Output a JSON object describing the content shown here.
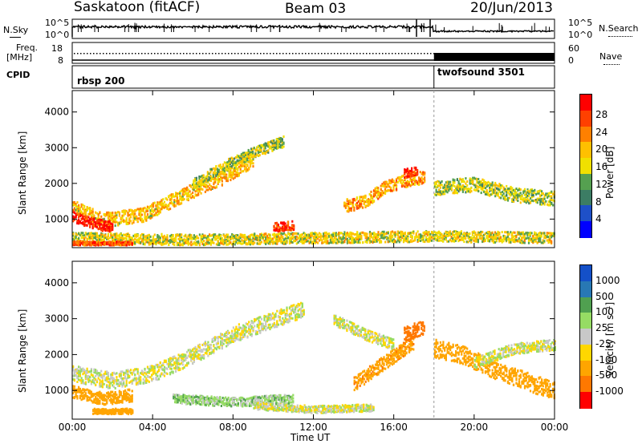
{
  "header": {
    "station": "Saskatoon (fitACF)",
    "beam": "Beam 03",
    "date": "20/Jun/2013"
  },
  "top_strip": {
    "nsky_label": "N.Sky",
    "nsearch_label": "N.Search",
    "freq_label_line1": "Freq.",
    "freq_label_line2": "[MHz]",
    "nave_label": "Nave",
    "cpid_label": "CPID",
    "left_ticks": [
      "10^5",
      "10^0"
    ],
    "right_ticks": [
      "10^5",
      "10^0"
    ],
    "freq_ticks": [
      "18",
      "8"
    ],
    "nave_ticks": [
      "60",
      "0"
    ],
    "cpid_segments": [
      {
        "label": "rbsp 200",
        "start_hour": 0,
        "end_hour": 18
      },
      {
        "label": "twofsound 3501",
        "start_hour": 18,
        "end_hour": 24
      }
    ]
  },
  "colors": {
    "power_scale": [
      "#0000ff",
      "#1e50c8",
      "#3c7d64",
      "#55a050",
      "#f0e000",
      "#ffc000",
      "#ff8000",
      "#ff4000",
      "#ff0000"
    ],
    "velocity_scale": [
      "#1450c8",
      "#2878b4",
      "#50a050",
      "#96dc64",
      "#c8c8c8",
      "#ffd700",
      "#ffa500",
      "#ff7800",
      "#ff0000"
    ]
  },
  "chart_data": [
    {
      "type": "heatmap",
      "name": "power-panel",
      "ylabel": "Slant Range [km]",
      "xlabel": "",
      "x_range_hours": [
        0,
        24
      ],
      "ylim": [
        200,
        4600
      ],
      "yticks": [
        1000,
        2000,
        3000,
        4000
      ],
      "xticks": [
        "00:00",
        "04:00",
        "08:00",
        "12:00",
        "16:00",
        "20:00",
        "00:00"
      ],
      "colorbar": {
        "label": "Power [dB]",
        "ticks": [
          "4",
          "8",
          "12",
          "16",
          "20",
          "24",
          "28"
        ],
        "range": [
          0,
          30
        ]
      },
      "bands": [
        {
          "x": [
            0,
            1.5,
            3.5,
            5.5,
            7.5,
            9.0
          ],
          "y": [
            1350,
            1000,
            1150,
            1700,
            2200,
            2700
          ],
          "width": 400,
          "value": 18
        },
        {
          "x": [
            0,
            1.0,
            2.0
          ],
          "y": [
            1100,
            900,
            800
          ],
          "width": 300,
          "value": 28
        },
        {
          "x": [
            6.0,
            7.5,
            9.0,
            10.5
          ],
          "y": [
            2000,
            2500,
            2900,
            3200
          ],
          "width": 300,
          "value": 14
        },
        {
          "x": [
            13.5,
            14.5,
            15.5,
            16.5,
            17.5
          ],
          "y": [
            1400,
            1500,
            1900,
            2100,
            2200
          ],
          "width": 350,
          "value": 20
        },
        {
          "x": [
            16.5,
            17.2
          ],
          "y": [
            2300,
            2400
          ],
          "width": 250,
          "value": 26
        },
        {
          "x": [
            18.0,
            20.0,
            22.0,
            24.0
          ],
          "y": [
            1900,
            2000,
            1700,
            1600
          ],
          "width": 400,
          "value": 14
        },
        {
          "x": [
            0,
            6,
            12,
            18,
            24
          ],
          "y": [
            500,
            450,
            500,
            550,
            500
          ],
          "width": 300,
          "value": 16
        },
        {
          "x": [
            10.0,
            11.0
          ],
          "y": [
            800,
            850
          ],
          "width": 250,
          "value": 26
        },
        {
          "x": [
            0,
            3.0
          ],
          "y": [
            350,
            350
          ],
          "width": 100,
          "value": 24
        }
      ]
    },
    {
      "type": "heatmap",
      "name": "velocity-panel",
      "ylabel": "Slant Range [km]",
      "xlabel": "Time UT",
      "x_range_hours": [
        0,
        24
      ],
      "ylim": [
        200,
        4600
      ],
      "yticks": [
        1000,
        2000,
        3000,
        4000
      ],
      "xticks": [
        "00:00",
        "04:00",
        "08:00",
        "12:00",
        "16:00",
        "20:00",
        "00:00"
      ],
      "colorbar": {
        "label": "Velocity [m s⁻¹]",
        "ticks": [
          "1000",
          "500",
          "100",
          "25",
          "-25",
          "-100",
          "-500",
          "-1000"
        ],
        "range": [
          -1200,
          1200
        ]
      },
      "bands": [
        {
          "x": [
            0,
            2,
            4,
            6,
            8,
            10,
            11.5
          ],
          "y": [
            1500,
            1300,
            1500,
            2000,
            2600,
            3000,
            3300
          ],
          "width": 450,
          "value": 0
        },
        {
          "x": [
            0,
            1.5,
            3.0
          ],
          "y": [
            1000,
            800,
            900
          ],
          "width": 350,
          "value": -350
        },
        {
          "x": [
            14.0,
            15.0,
            16.0,
            17.0
          ],
          "y": [
            1200,
            1600,
            2000,
            2400
          ],
          "width": 400,
          "value": -450
        },
        {
          "x": [
            16.5,
            17.5
          ],
          "y": [
            2600,
            2800
          ],
          "width": 400,
          "value": -600
        },
        {
          "x": [
            18.0,
            19.5,
            21.0,
            22.5,
            24.0
          ],
          "y": [
            2200,
            2000,
            1600,
            1300,
            1000
          ],
          "width": 500,
          "value": -350
        },
        {
          "x": [
            13.0,
            14.5,
            16.0
          ],
          "y": [
            3000,
            2600,
            2300
          ],
          "width": 300,
          "value": 0
        },
        {
          "x": [
            20.0,
            22.0,
            24.0
          ],
          "y": [
            1800,
            2200,
            2300
          ],
          "width": 300,
          "value": 0
        },
        {
          "x": [
            5.0,
            8.0,
            11.0
          ],
          "y": [
            800,
            700,
            800
          ],
          "width": 250,
          "value": 60
        },
        {
          "x": [
            9.0,
            12.0,
            15.0
          ],
          "y": [
            600,
            500,
            550
          ],
          "width": 200,
          "value": 0
        },
        {
          "x": [
            1.0,
            3.0
          ],
          "y": [
            450,
            450
          ],
          "width": 150,
          "value": -300
        }
      ]
    }
  ]
}
